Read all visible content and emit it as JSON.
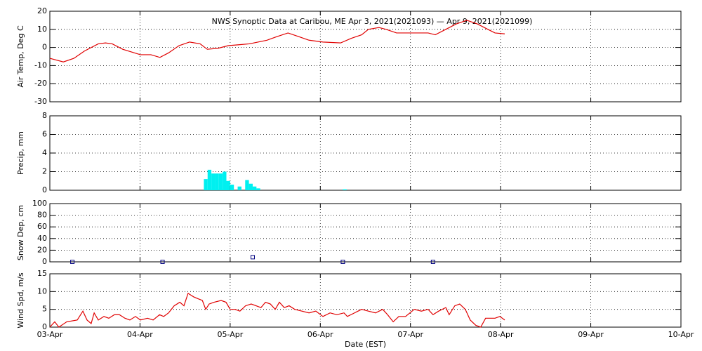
{
  "chart_data": [
    {
      "type": "line",
      "title": "NWS Synoptic Data at Caribou, ME   Apr  3, 2021(2021093) — Apr  9, 2021(2021099)",
      "ylabel": "Air Temp, Deg C",
      "color": "#e00000",
      "grid": true,
      "xlim": [
        0,
        168
      ],
      "xticks": [
        0,
        24,
        48,
        72,
        96,
        120,
        144,
        168
      ],
      "ylim": [
        -30,
        20
      ],
      "yticks": [
        -30,
        -20,
        -10,
        0,
        10,
        20
      ],
      "x": [
        0,
        3.6,
        6.4,
        9.2,
        12.9,
        14.8,
        16.6,
        19.4,
        24.1,
        26.9,
        29.3,
        31.6,
        34.4,
        37.2,
        40,
        41.9,
        44.7,
        47.5,
        50.3,
        53.1,
        57.8,
        60.5,
        63.4,
        66.2,
        69,
        72.7,
        77.4,
        80.2,
        83,
        84.8,
        87.6,
        89.5,
        92.3,
        97,
        100.7,
        102.6,
        105.4,
        108.2,
        111,
        113.8,
        116.6,
        118.5,
        121.1
      ],
      "values": [
        -6,
        -8,
        -6,
        -2,
        2,
        2.5,
        2,
        -1,
        -4,
        -4,
        -5.5,
        -3,
        1,
        3,
        2,
        -1,
        -0.5,
        1,
        1.5,
        2,
        4,
        6,
        8,
        6,
        4,
        3,
        2.5,
        5,
        7,
        10,
        11,
        10,
        8,
        8,
        8,
        7,
        10,
        13,
        15,
        13,
        10,
        8,
        7.5
      ]
    },
    {
      "type": "bar",
      "ylabel": "Precip, mm",
      "color": "#00f0f0",
      "grid": true,
      "xlim": [
        0,
        168
      ],
      "xticks": [
        0,
        24,
        48,
        72,
        96,
        120,
        144,
        168
      ],
      "ylim": [
        0,
        8
      ],
      "yticks": [
        0,
        2,
        4,
        6,
        8
      ],
      "x": [
        41,
        42,
        43,
        44,
        45,
        46,
        47,
        48,
        49,
        50,
        51,
        52,
        53,
        54,
        55,
        78
      ],
      "values": [
        1.2,
        2.2,
        1.8,
        1.8,
        1.8,
        2.0,
        1.0,
        0.6,
        0,
        0.4,
        0,
        1.1,
        0.7,
        0.4,
        0.2,
        0.1
      ]
    },
    {
      "type": "scatter",
      "ylabel": "Snow Dep, cm",
      "color": "#000080",
      "grid": true,
      "xlim": [
        0,
        168
      ],
      "xticks": [
        0,
        24,
        48,
        72,
        96,
        120,
        144,
        168
      ],
      "ylim": [
        0,
        100
      ],
      "yticks": [
        0,
        20,
        40,
        60,
        80,
        100
      ],
      "x": [
        6,
        30,
        54,
        78,
        102
      ],
      "values": [
        0,
        0,
        8,
        0,
        0
      ]
    },
    {
      "type": "line",
      "ylabel": "Wind Spd, m/s",
      "xlabel": "Date (EST)",
      "color": "#e00000",
      "grid": true,
      "xlim": [
        0,
        168
      ],
      "xticks": [
        {
          "value": 0,
          "label": "03-Apr"
        },
        {
          "value": 24,
          "label": "04-Apr"
        },
        {
          "value": 48,
          "label": "05-Apr"
        },
        {
          "value": 72,
          "label": "06-Apr"
        },
        {
          "value": 96,
          "label": "07-Apr"
        },
        {
          "value": 120,
          "label": "08-Apr"
        },
        {
          "value": 144,
          "label": "09-Apr"
        },
        {
          "value": 168,
          "label": "10-Apr"
        }
      ],
      "ylim": [
        0,
        15
      ],
      "yticks": [
        0,
        5,
        10,
        15
      ],
      "x": [
        0,
        1.3,
        2.4,
        4.5,
        7.3,
        8.8,
        9.9,
        11.0,
        11.8,
        12.9,
        14.4,
        15.7,
        17.2,
        18.5,
        20.0,
        21.3,
        22.8,
        24.1,
        26.0,
        27.5,
        29.2,
        30.3,
        31.6,
        33.1,
        34.6,
        35.7,
        36.8,
        38.3,
        39.4,
        40.6,
        41.5,
        42.4,
        43.7,
        45.6,
        46.9,
        48.0,
        49.3,
        50.6,
        52.1,
        53.6,
        54.9,
        56.2,
        57.4,
        58.7,
        60.0,
        61.1,
        62.4,
        63.7,
        65.2,
        67.1,
        69.0,
        70.8,
        72.7,
        74.6,
        76.4,
        78.3,
        79.2,
        81.1,
        83.0,
        84.8,
        86.7,
        88.6,
        89.9,
        91.4,
        92.9,
        94.7,
        97.0,
        98.9,
        100.7,
        102.0,
        103.5,
        105.4,
        106.3,
        107.8,
        109.1,
        110.6,
        111.9,
        113.4,
        114.7,
        116.0,
        118.5,
        119.8,
        121.1
      ],
      "values": [
        0,
        1.5,
        0,
        1.5,
        2,
        4.5,
        2,
        1,
        4,
        2,
        3,
        2.5,
        3.5,
        3.5,
        2.5,
        2,
        3,
        2,
        2.5,
        2,
        3.5,
        3,
        4,
        6,
        7,
        6,
        9.5,
        8.5,
        8,
        7.5,
        5,
        6.5,
        7,
        7.5,
        7,
        5,
        5,
        4.5,
        6,
        6.5,
        6,
        5.5,
        7,
        6.5,
        5,
        7,
        5.5,
        6,
        5,
        4.5,
        4,
        4.5,
        3,
        4,
        3.5,
        4,
        3,
        4,
        5,
        4.5,
        4,
        5,
        3.5,
        1.5,
        3,
        3,
        5,
        4.5,
        5,
        3.5,
        4.5,
        5.5,
        3.5,
        6,
        6.5,
        5,
        2,
        0.5,
        0,
        2.5,
        2.5,
        3,
        2
      ]
    }
  ]
}
